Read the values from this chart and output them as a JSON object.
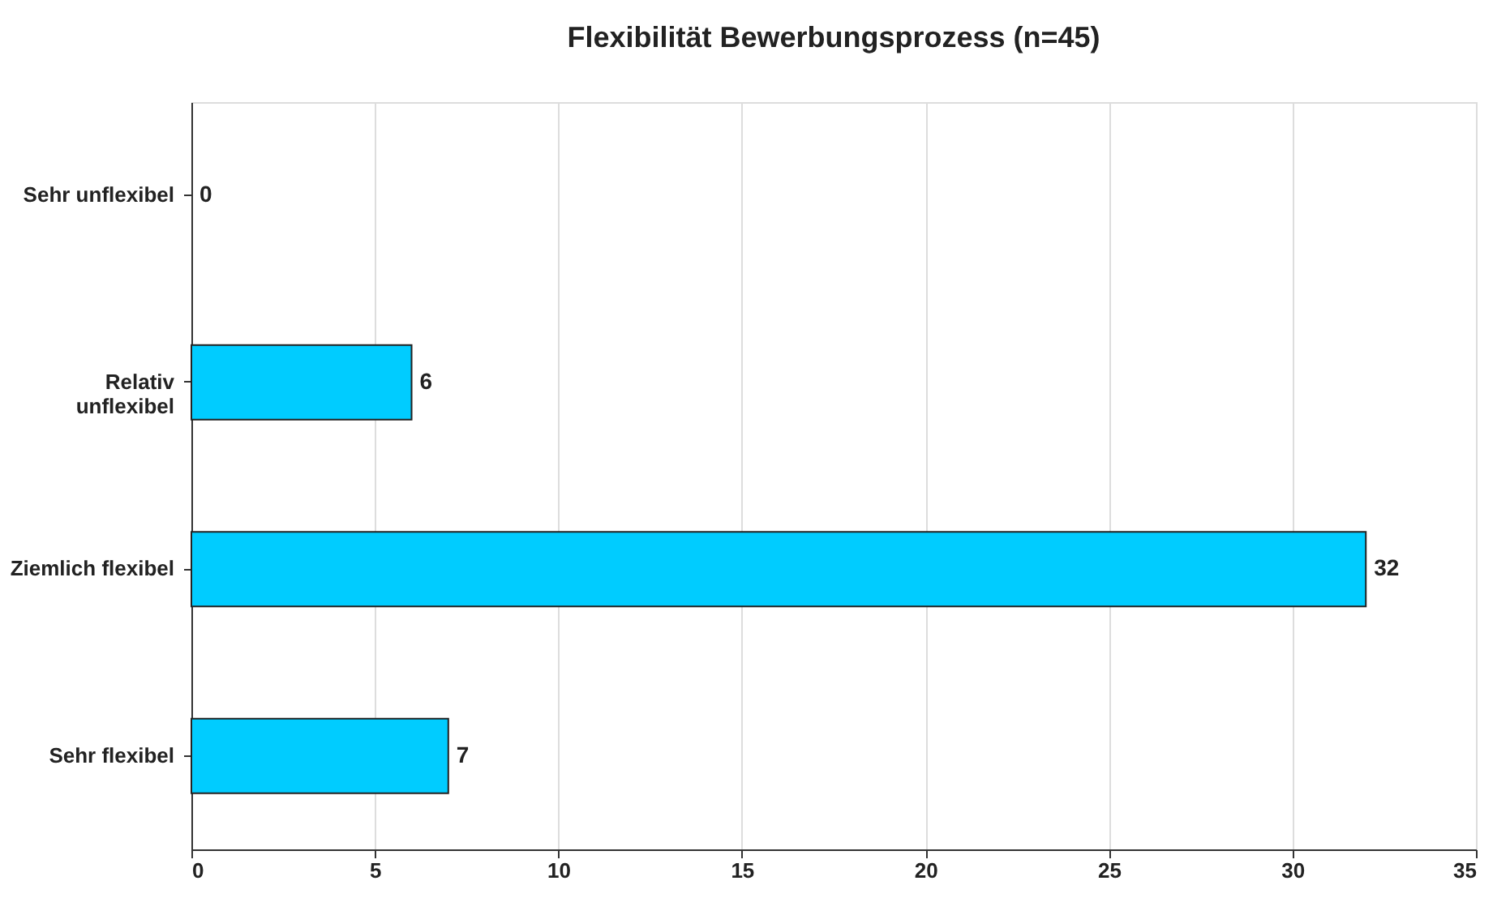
{
  "chart_data": {
    "type": "bar",
    "orientation": "horizontal",
    "title": "Flexibilität Bewerbungsprozess (n=45)",
    "categories": [
      "Sehr unflexibel",
      "Relativ\nunflexibel",
      "Ziemlich flexibel",
      "Sehr flexibel"
    ],
    "values": [
      0,
      6,
      32,
      7
    ],
    "color": "#00ccff",
    "xlim": [
      0,
      35
    ],
    "xticks": [
      0,
      5,
      10,
      15,
      20,
      25,
      30,
      35
    ],
    "grid": "x",
    "data_labels": true
  }
}
